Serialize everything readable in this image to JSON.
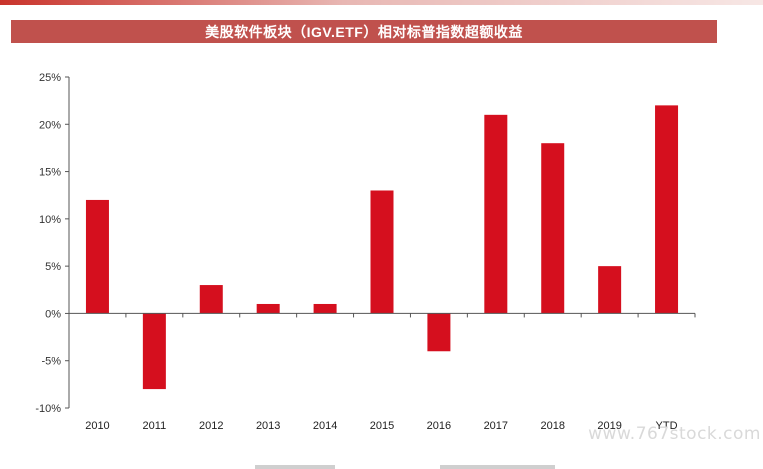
{
  "title": "美股软件板块（IGV.ETF）相对标普指数超额收益",
  "watermark": "www.767stock.com",
  "colors": {
    "bar": "#d50f1e",
    "banner": "#c0514d",
    "axis": "#555555"
  },
  "chart_data": {
    "type": "bar",
    "title": "美股软件板块（IGV.ETF）相对标普指数超额收益",
    "xlabel": "",
    "ylabel": "",
    "categories": [
      "2010",
      "2011",
      "2012",
      "2013",
      "2014",
      "2015",
      "2016",
      "2017",
      "2018",
      "2019",
      "YTD"
    ],
    "values": [
      12,
      -8,
      3,
      1,
      1,
      13,
      -4,
      21,
      18,
      5,
      22
    ],
    "unit": "%",
    "ylim": [
      -10,
      25
    ],
    "yticks": [
      -10,
      -5,
      0,
      5,
      10,
      15,
      20,
      25
    ],
    "ytick_labels": [
      "-10%",
      "-5%",
      "0%",
      "5%",
      "10%",
      "15%",
      "20%",
      "25%"
    ],
    "grid": false,
    "legend": "bottom"
  }
}
